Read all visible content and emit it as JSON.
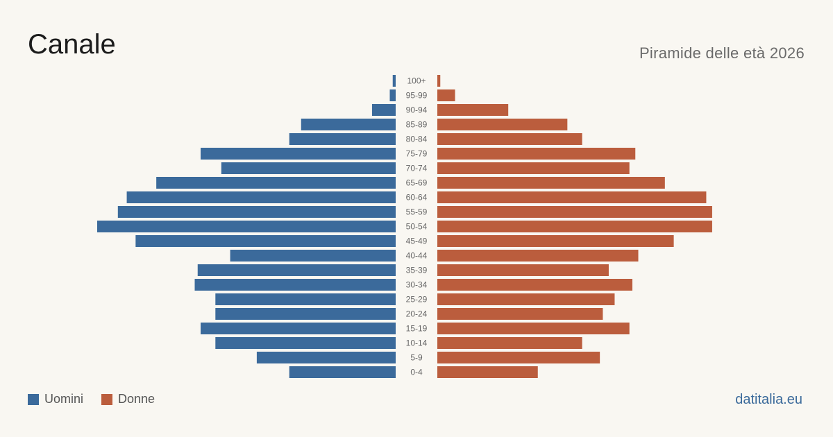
{
  "header": {
    "title": "Canale",
    "subtitle": "Piramide delle età 2026"
  },
  "legend": {
    "men_label": "Uomini",
    "women_label": "Donne"
  },
  "source": "datitalia.eu",
  "colors": {
    "men": "#3b6a9b",
    "women": "#bb5d3d",
    "axis_label": "#666666",
    "background": "#f9f7f2"
  },
  "chart_data": {
    "type": "bar",
    "orientation": "horizontal-pyramid",
    "title": "Piramide delle età 2026",
    "categories": [
      "100+",
      "95-99",
      "90-94",
      "85-89",
      "80-84",
      "75-79",
      "70-74",
      "65-69",
      "60-64",
      "55-59",
      "50-54",
      "45-49",
      "40-44",
      "35-39",
      "30-34",
      "25-29",
      "20-24",
      "15-19",
      "10-14",
      "5-9",
      "0-4"
    ],
    "series": [
      {
        "name": "Uomini",
        "values": [
          1,
          2,
          8,
          32,
          36,
          66,
          59,
          81,
          91,
          94,
          101,
          88,
          56,
          67,
          68,
          61,
          61,
          66,
          61,
          47,
          36
        ]
      },
      {
        "name": "Donne",
        "values": [
          1,
          6,
          24,
          44,
          49,
          67,
          65,
          77,
          91,
          93,
          93,
          80,
          68,
          58,
          66,
          60,
          56,
          65,
          49,
          55,
          34
        ]
      }
    ],
    "xlim": [
      0,
      101
    ],
    "legend_position": "bottom-left",
    "grid": false
  }
}
